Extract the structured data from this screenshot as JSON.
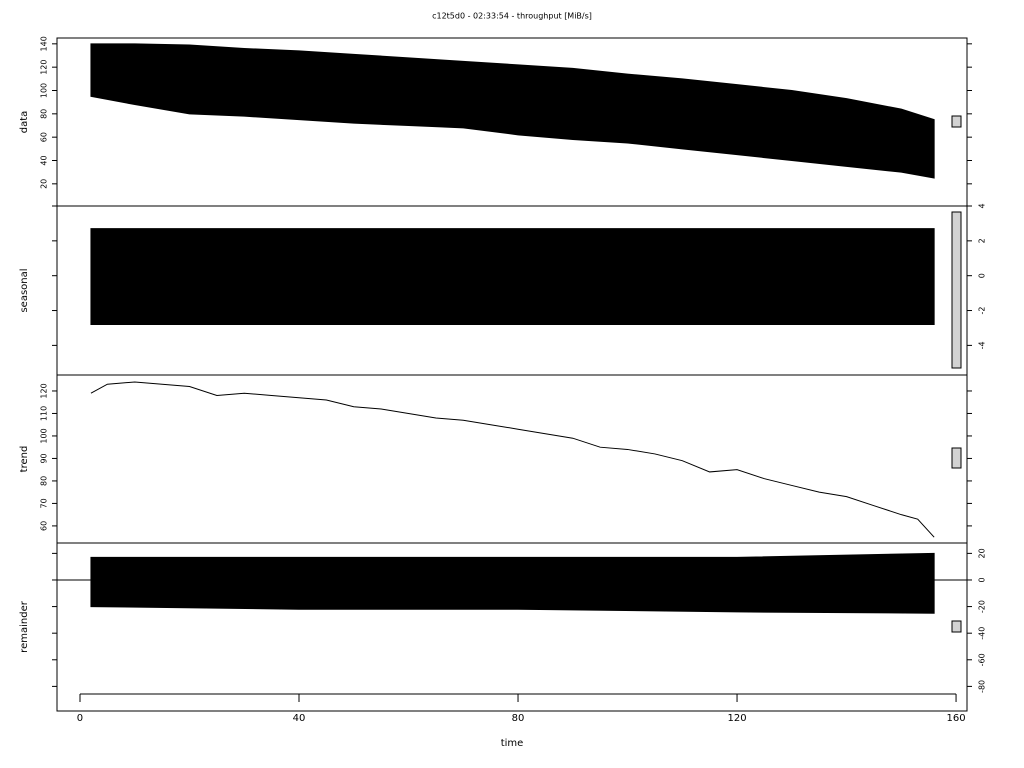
{
  "chart_data": [
    {
      "type": "band",
      "title": "c12t5d0 - 02:33:54 - throughput [MiB/s]",
      "ylabel": "data",
      "tick_side": "left",
      "xlim": [
        -4.2,
        162
      ],
      "ylim": [
        1,
        145
      ],
      "yticks": [
        20,
        40,
        60,
        80,
        100,
        120,
        140
      ],
      "color": "#000000",
      "x": [
        2,
        10,
        20,
        30,
        40,
        50,
        60,
        70,
        80,
        90,
        100,
        110,
        120,
        130,
        140,
        150,
        156
      ],
      "high": [
        140,
        140,
        139,
        136,
        134,
        131,
        128,
        125,
        122,
        119,
        114,
        110,
        105,
        100,
        93,
        84,
        75
      ],
      "low": [
        95,
        88,
        80,
        78,
        75,
        72,
        70,
        68,
        62,
        58,
        55,
        50,
        45,
        40,
        35,
        30,
        25
      ]
    },
    {
      "type": "band",
      "ylabel": "seasonal",
      "tick_side": "right",
      "xlim": [
        -4.2,
        162
      ],
      "ylim": [
        -5.7,
        4
      ],
      "yticks": [
        -4,
        -2,
        0,
        2,
        4
      ],
      "color": "#000000",
      "x": [
        2,
        156
      ],
      "high": [
        2.7,
        2.7
      ],
      "low": [
        -2.8,
        -2.8
      ]
    },
    {
      "type": "line",
      "ylabel": "trend",
      "tick_side": "left",
      "xlim": [
        -4.2,
        162
      ],
      "ylim": [
        52.4,
        127.1
      ],
      "yticks": [
        60,
        70,
        80,
        90,
        100,
        110,
        120
      ],
      "color": "#000000",
      "x": [
        2,
        5,
        10,
        15,
        20,
        25,
        30,
        35,
        40,
        45,
        50,
        55,
        60,
        65,
        70,
        75,
        80,
        85,
        90,
        95,
        100,
        105,
        110,
        115,
        120,
        125,
        130,
        135,
        140,
        145,
        150,
        153,
        156
      ],
      "values": [
        119,
        123,
        124,
        123,
        122,
        118,
        119,
        118,
        117,
        116,
        113,
        112,
        110,
        108,
        107,
        105,
        103,
        101,
        99,
        95,
        94,
        92,
        89,
        84,
        85,
        81,
        78,
        75,
        73,
        69,
        65,
        63,
        55
      ]
    },
    {
      "type": "band",
      "ylabel": "remainder",
      "xlabel": "time",
      "tick_side": "right",
      "xlim": [
        -4.2,
        162
      ],
      "ylim": [
        -98.5,
        27.8
      ],
      "yticks": [
        -80,
        -60,
        -40,
        -20,
        0,
        20
      ],
      "color": "#000000",
      "xticks": [
        0,
        40,
        80,
        120,
        160
      ],
      "x": [
        2,
        40,
        80,
        120,
        156
      ],
      "high": [
        17,
        17,
        17,
        17,
        20
      ],
      "low": [
        -20,
        -22,
        -22,
        -24,
        -25
      ]
    }
  ]
}
